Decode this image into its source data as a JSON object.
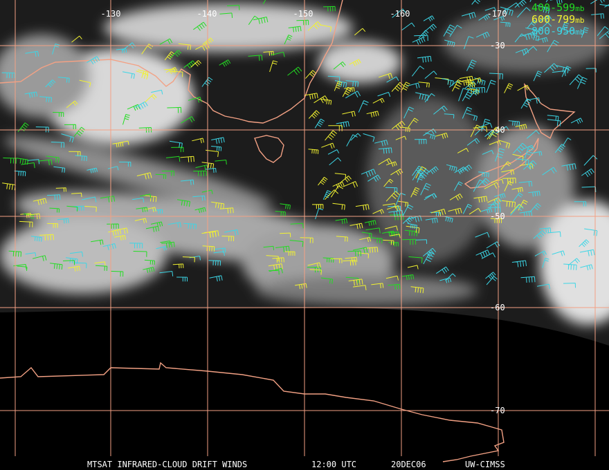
{
  "map": {
    "longitude_labels": [
      "-130",
      "-140",
      "-150",
      "-160",
      "-170"
    ],
    "latitude_labels": [
      "-30",
      "-40",
      "-50",
      "-60",
      "-70"
    ]
  },
  "legend": [
    {
      "range": "400-599",
      "unit": "mb",
      "color": "#22dd22"
    },
    {
      "range": "600-799",
      "unit": "mb",
      "color": "#f2f230"
    },
    {
      "range": "800-950",
      "unit": "mb",
      "color": "#3cd6e6"
    }
  ],
  "footer": {
    "product": "MTSAT INFRARED-CLOUD DRIFT WINDS",
    "time": "12:00 UTC",
    "date": "20DEC06",
    "source": "UW-CIMSS"
  }
}
